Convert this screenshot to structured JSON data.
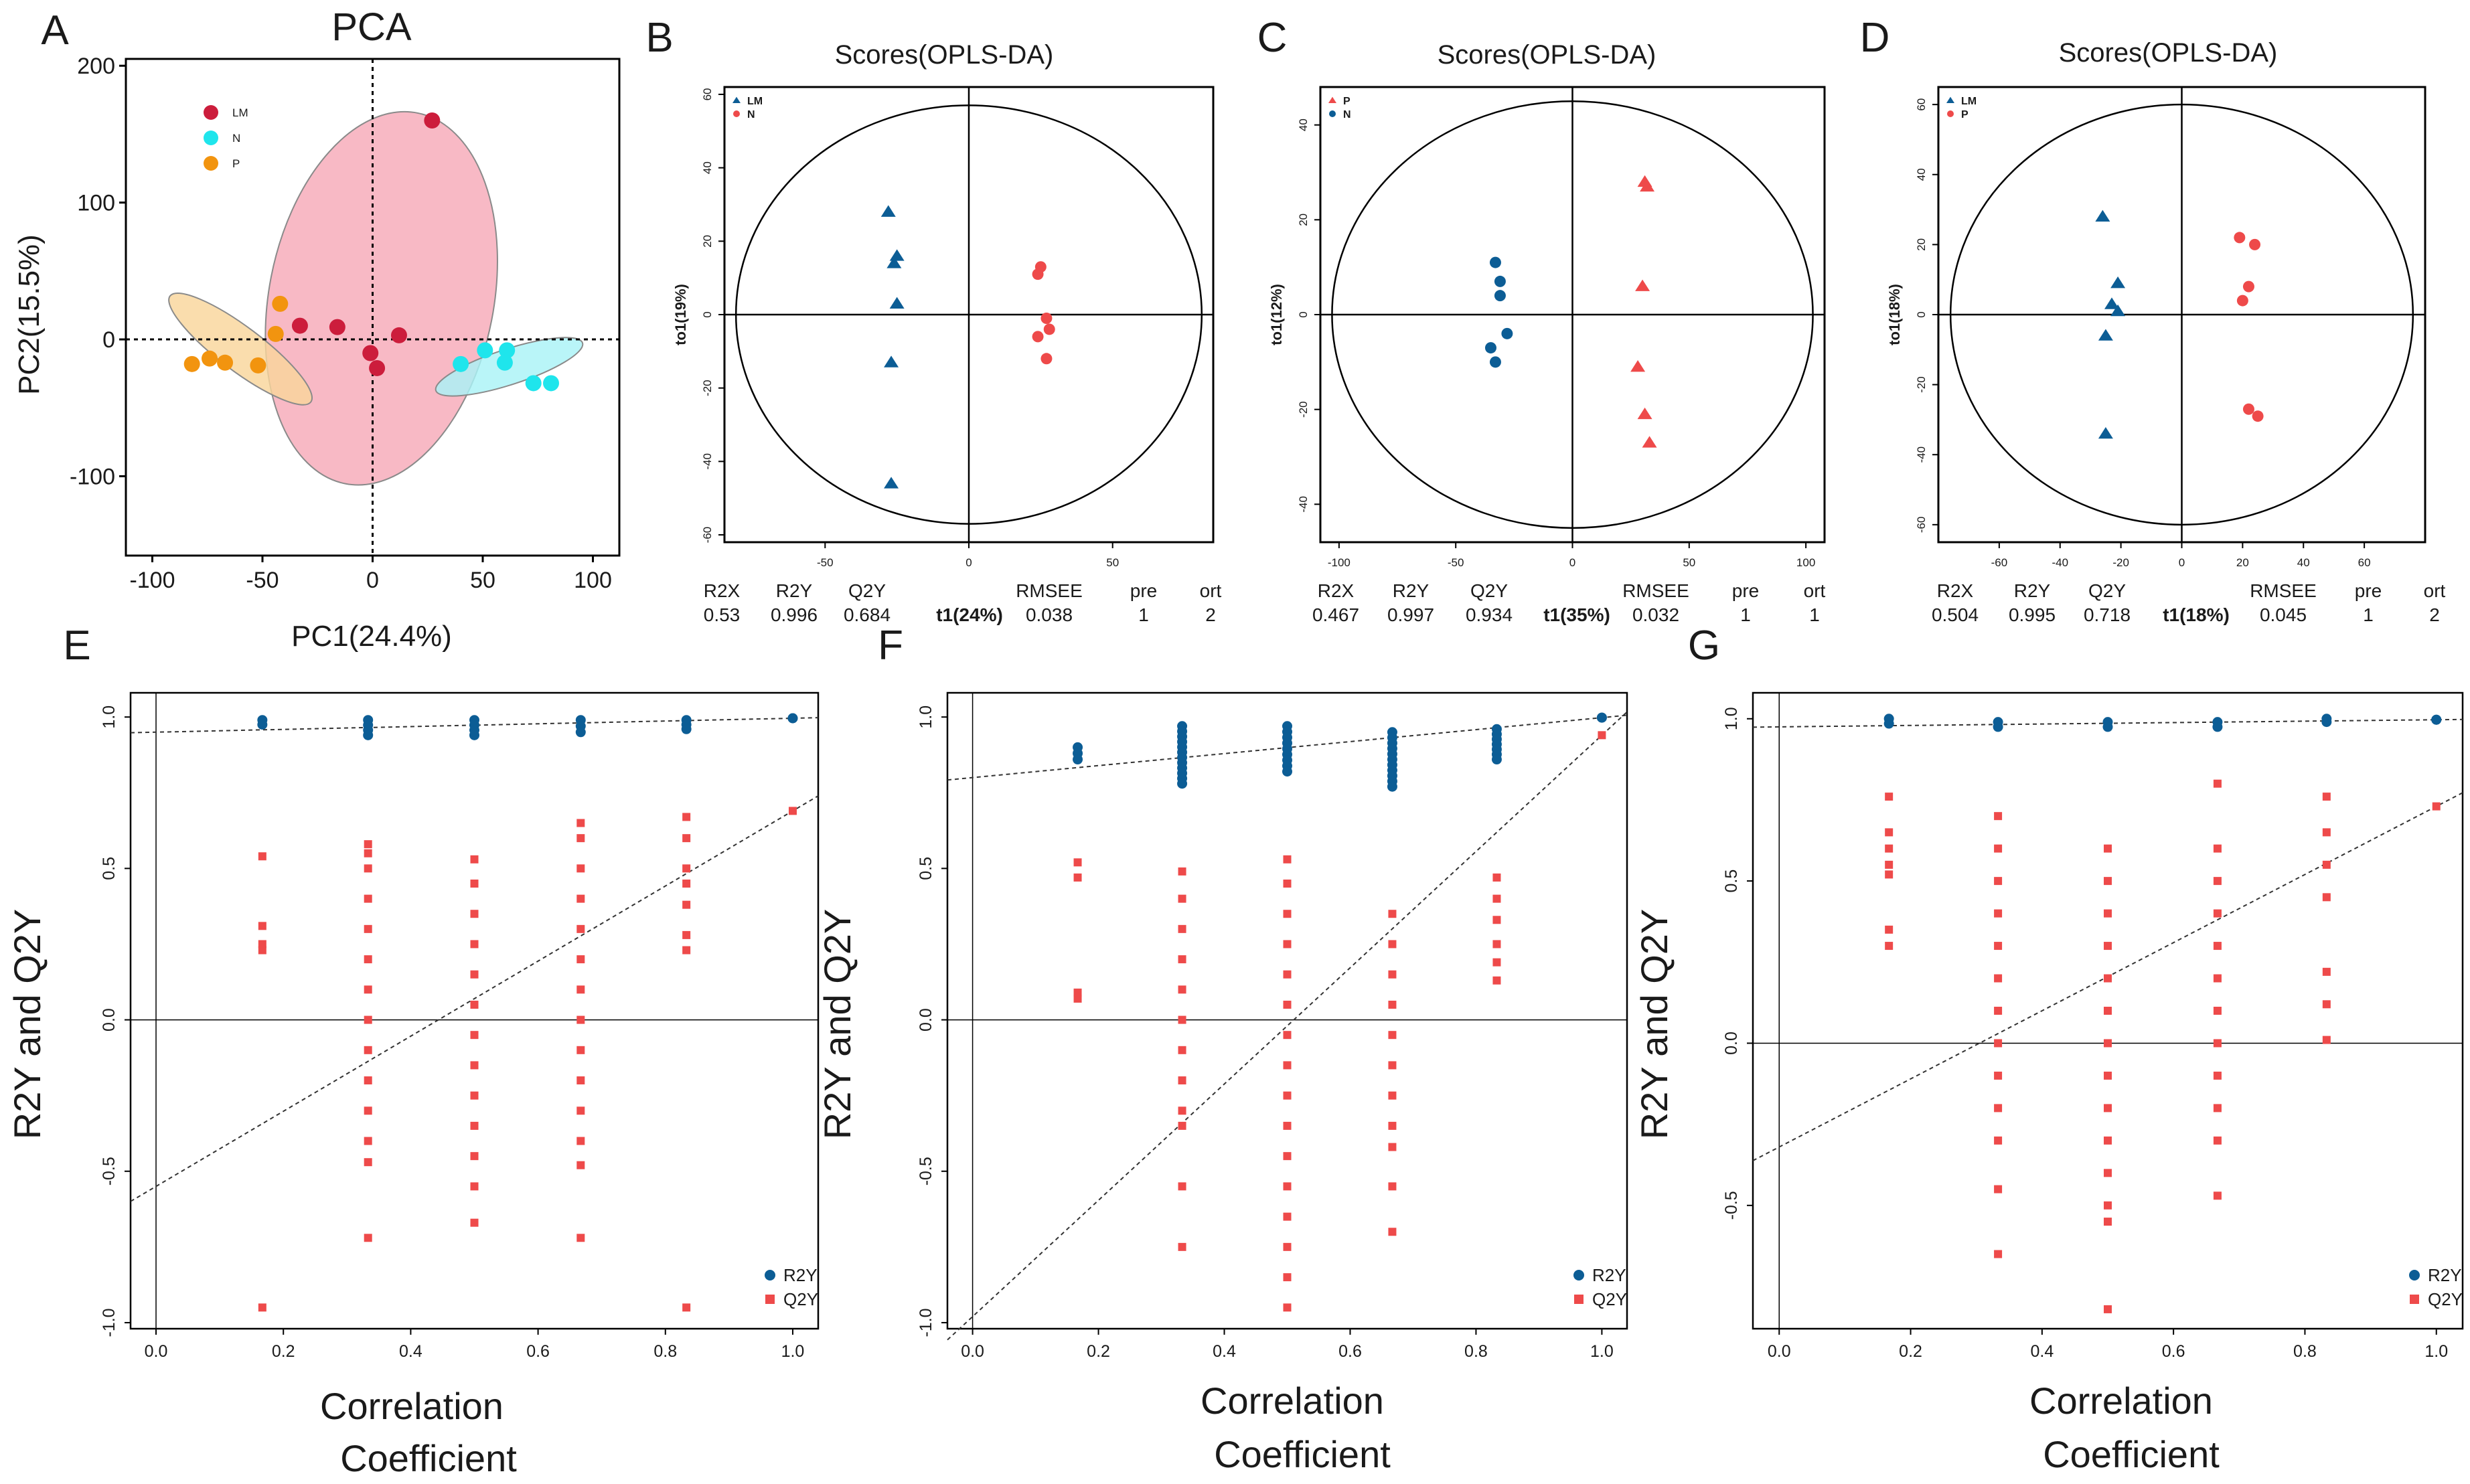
{
  "colors": {
    "lm": "#cc1d3c",
    "n": "#1fe5ec",
    "p": "#f2940f",
    "blue": "#0c5d95",
    "red": "#ee4a4a",
    "lm_ellipse": "#f7a9b8",
    "n_ellipse": "#aaf3f6",
    "p_ellipse": "#f9d59b"
  },
  "chart_data": [
    {
      "panel": "A",
      "type": "scatter",
      "title": "PCA",
      "xlabel": "PC1(24.4%)",
      "ylabel": "PC2(15.5%)",
      "xlim": [
        -112,
        112
      ],
      "ylim": [
        -158,
        205
      ],
      "xticks": [
        "-100",
        "-50",
        "0",
        "50",
        "100"
      ],
      "xtick_values": [
        -100,
        -50,
        0,
        50,
        100
      ],
      "yticks": [
        "200",
        "100",
        "0",
        "-100"
      ],
      "ytick_values": [
        200,
        100,
        0,
        -100
      ],
      "legend": [
        "LM",
        "N",
        "P"
      ],
      "series": [
        {
          "name": "LM",
          "color_key": "lm",
          "points": [
            [
              27,
              160
            ],
            [
              -33,
              10
            ],
            [
              -16,
              9
            ],
            [
              12,
              3
            ],
            [
              -1,
              -10
            ],
            [
              2,
              -21
            ]
          ],
          "ellipse": {
            "cx": 4,
            "cy": 30,
            "rx": 51,
            "ry": 138,
            "angle_deg": 11
          }
        },
        {
          "name": "N",
          "color_key": "n",
          "points": [
            [
              40,
              -18
            ],
            [
              51,
              -8
            ],
            [
              61,
              -8
            ],
            [
              60,
              -17
            ],
            [
              73,
              -32
            ],
            [
              81,
              -32
            ]
          ],
          "ellipse": {
            "cx": 62,
            "cy": -20,
            "rx": 35,
            "ry": 13,
            "angle_deg": -18
          }
        },
        {
          "name": "P",
          "color_key": "p",
          "points": [
            [
              -82,
              -18
            ],
            [
              -74,
              -14
            ],
            [
              -67,
              -17
            ],
            [
              -52,
              -19
            ],
            [
              -44,
              4
            ],
            [
              -42,
              26
            ]
          ],
          "ellipse": {
            "cx": -60,
            "cy": -7,
            "rx": 40,
            "ry": 16,
            "angle_deg": 37
          }
        }
      ]
    },
    {
      "panel": "B",
      "type": "scatter",
      "title": "Scores(OPLS-DA)",
      "ylabel": "to1(19%)",
      "xlim": [
        -85,
        85
      ],
      "ylim": [
        -62,
        62
      ],
      "xticks": [
        "-50",
        "0",
        "50"
      ],
      "xtick_values": [
        -50,
        0,
        50
      ],
      "yticks": [
        "60",
        "40",
        "20",
        "0",
        "-20",
        "-40",
        "-60"
      ],
      "ytick_values": [
        60,
        40,
        20,
        0,
        -20,
        -40,
        -60
      ],
      "ellipse": {
        "rx": 81,
        "ry": 57
      },
      "legend": [
        {
          "name": "LM",
          "shape": "triangle",
          "color_key": "blue"
        },
        {
          "name": "N",
          "shape": "circle",
          "color_key": "red"
        }
      ],
      "series": [
        {
          "name": "LM",
          "shape": "triangle",
          "color_key": "blue",
          "points": [
            [
              -28,
              28
            ],
            [
              -25,
              16
            ],
            [
              -26,
              14
            ],
            [
              -25,
              3
            ],
            [
              -27,
              -13
            ],
            [
              -27,
              -46
            ]
          ]
        },
        {
          "name": "N",
          "shape": "circle",
          "color_key": "red",
          "points": [
            [
              25,
              13
            ],
            [
              24,
              11
            ],
            [
              27,
              -1
            ],
            [
              28,
              -4
            ],
            [
              24,
              -6
            ],
            [
              27,
              -12
            ]
          ]
        }
      ],
      "stats": {
        "headers": [
          "R2X",
          "R2Y",
          "Q2Y",
          "t1(24%)",
          "RMSEE",
          "pre",
          "ort"
        ],
        "values": [
          "0.53",
          "0.996",
          "0.684",
          "",
          "0.038",
          "1",
          "2"
        ]
      }
    },
    {
      "panel": "C",
      "type": "scatter",
      "title": "Scores(OPLS-DA)",
      "ylabel": "to1(12%)",
      "xlim": [
        -108,
        108
      ],
      "ylim": [
        -48,
        48
      ],
      "xticks": [
        "-100",
        "-50",
        "0",
        "50",
        "100"
      ],
      "xtick_values": [
        -100,
        -50,
        0,
        50,
        100
      ],
      "yticks": [
        "40",
        "20",
        "0",
        "-20",
        "-40"
      ],
      "ytick_values": [
        40,
        20,
        0,
        -20,
        -40
      ],
      "ellipse": {
        "rx": 103,
        "ry": 45
      },
      "legend": [
        {
          "name": "P",
          "shape": "triangle",
          "color_key": "red"
        },
        {
          "name": "N",
          "shape": "circle",
          "color_key": "blue"
        }
      ],
      "series": [
        {
          "name": "P",
          "shape": "triangle",
          "color_key": "red",
          "points": [
            [
              31,
              28
            ],
            [
              32,
              27
            ],
            [
              30,
              6
            ],
            [
              28,
              -11
            ],
            [
              31,
              -21
            ],
            [
              33,
              -27
            ]
          ]
        },
        {
          "name": "N",
          "shape": "circle",
          "color_key": "blue",
          "points": [
            [
              -33,
              11
            ],
            [
              -31,
              7
            ],
            [
              -31,
              4
            ],
            [
              -28,
              -4
            ],
            [
              -35,
              -7
            ],
            [
              -33,
              -10
            ]
          ]
        }
      ],
      "stats": {
        "headers": [
          "R2X",
          "R2Y",
          "Q2Y",
          "t1(35%)",
          "RMSEE",
          "pre",
          "ort"
        ],
        "values": [
          "0.467",
          "0.997",
          "0.934",
          "",
          "0.032",
          "1",
          "1"
        ]
      }
    },
    {
      "panel": "D",
      "type": "scatter",
      "title": "Scores(OPLS-DA)",
      "ylabel": "to1(18%)",
      "xlim": [
        -80,
        80
      ],
      "ylim": [
        -65,
        65
      ],
      "xticks": [
        "-60",
        "-40",
        "-20",
        "0",
        "20",
        "40",
        "60"
      ],
      "xtick_values": [
        -60,
        -40,
        -20,
        0,
        20,
        40,
        60
      ],
      "yticks": [
        "60",
        "40",
        "20",
        "0",
        "-20",
        "-40",
        "-60"
      ],
      "ytick_values": [
        60,
        40,
        20,
        0,
        -20,
        -40,
        -60
      ],
      "ellipse": {
        "rx": 76,
        "ry": 60
      },
      "legend": [
        {
          "name": "LM",
          "shape": "triangle",
          "color_key": "blue"
        },
        {
          "name": "P",
          "shape": "circle",
          "color_key": "red"
        }
      ],
      "series": [
        {
          "name": "LM",
          "shape": "triangle",
          "color_key": "blue",
          "points": [
            [
              -26,
              28
            ],
            [
              -21,
              9
            ],
            [
              -23,
              3
            ],
            [
              -21,
              1
            ],
            [
              -25,
              -6
            ],
            [
              -25,
              -34
            ]
          ]
        },
        {
          "name": "P",
          "shape": "circle",
          "color_key": "red",
          "points": [
            [
              19,
              22
            ],
            [
              24,
              20
            ],
            [
              22,
              8
            ],
            [
              20,
              4
            ],
            [
              22,
              -27
            ],
            [
              25,
              -29
            ]
          ]
        }
      ],
      "stats": {
        "headers": [
          "R2X",
          "R2Y",
          "Q2Y",
          "t1(18%)",
          "RMSEE",
          "pre",
          "ort"
        ],
        "values": [
          "0.504",
          "0.995",
          "0.718",
          "",
          "0.045",
          "1",
          "2"
        ]
      }
    },
    {
      "panel": "E",
      "type": "scatter",
      "xlabel": [
        "Correlation",
        "Coefficient"
      ],
      "ylabel": "R2Y and Q2Y",
      "xlim": [
        -0.04,
        1.04
      ],
      "ylim": [
        -1.02,
        1.08
      ],
      "xticks": [
        "0.0",
        "0.2",
        "0.4",
        "0.6",
        "0.8",
        "1.0"
      ],
      "xtick_values": [
        0,
        0.2,
        0.4,
        0.6,
        0.8,
        1.0
      ],
      "yticks": [
        "1.0",
        "0.5",
        "0.0",
        "-0.5",
        "-1.0"
      ],
      "ytick_values": [
        1.0,
        0.5,
        0.0,
        -0.5,
        -1.0
      ],
      "legend": [
        {
          "name": "R2Y",
          "shape": "circle",
          "color_key": "blue"
        },
        {
          "name": "Q2Y",
          "shape": "square",
          "color_key": "red"
        }
      ],
      "r2y_intercept": 0.95,
      "q2y_intercept": -0.55,
      "r2y": [
        [
          0.167,
          0.975,
          0.99
        ],
        [
          0.333,
          0.94,
          0.99
        ],
        [
          0.5,
          0.94,
          0.99
        ],
        [
          0.667,
          0.95,
          0.99
        ],
        [
          0.833,
          0.96,
          0.99
        ],
        [
          1.0,
          0.996,
          0.996
        ]
      ],
      "q2y": [
        [
          0.167,
          [
            0.54,
            0.31,
            0.25,
            0.23,
            -0.95
          ]
        ],
        [
          0.333,
          [
            0.58,
            0.55,
            0.5,
            0.4,
            0.3,
            0.2,
            0.1,
            0.0,
            -0.1,
            -0.2,
            -0.3,
            -0.4,
            -0.47,
            -0.72
          ]
        ],
        [
          0.5,
          [
            0.53,
            0.45,
            0.35,
            0.25,
            0.15,
            0.05,
            -0.05,
            -0.15,
            -0.25,
            -0.35,
            -0.45,
            -0.55,
            -0.67
          ]
        ],
        [
          0.667,
          [
            0.65,
            0.6,
            0.5,
            0.4,
            0.3,
            0.2,
            0.1,
            0.0,
            -0.1,
            -0.2,
            -0.3,
            -0.4,
            -0.48,
            -0.72
          ]
        ],
        [
          0.833,
          [
            0.67,
            0.6,
            0.5,
            0.45,
            0.38,
            0.28,
            0.23,
            -0.95
          ]
        ],
        [
          1.0,
          [
            0.69
          ]
        ]
      ]
    },
    {
      "panel": "F",
      "type": "scatter",
      "xlabel": [
        "Correlation",
        "Coefficient"
      ],
      "ylabel": "R2Y and Q2Y",
      "xlim": [
        -0.04,
        1.04
      ],
      "ylim": [
        -1.02,
        1.08
      ],
      "xticks": [
        "0.0",
        "0.2",
        "0.4",
        "0.6",
        "0.8",
        "1.0"
      ],
      "xtick_values": [
        0,
        0.2,
        0.4,
        0.6,
        0.8,
        1.0
      ],
      "yticks": [
        "1.0",
        "0.5",
        "0.0",
        "-0.5",
        "-1.0"
      ],
      "ytick_values": [
        1.0,
        0.5,
        0.0,
        -0.5,
        -1.0
      ],
      "legend": [
        {
          "name": "R2Y",
          "shape": "circle",
          "color_key": "blue"
        },
        {
          "name": "Q2Y",
          "shape": "square",
          "color_key": "red"
        }
      ],
      "r2y_intercept": 0.8,
      "q2y_intercept": -0.98,
      "r2y": [
        [
          0.167,
          0.86,
          0.9
        ],
        [
          0.333,
          0.78,
          0.97
        ],
        [
          0.5,
          0.82,
          0.97
        ],
        [
          0.667,
          0.77,
          0.95
        ],
        [
          0.833,
          0.86,
          0.96
        ],
        [
          1.0,
          0.998,
          0.998
        ]
      ],
      "q2y": [
        [
          0.167,
          [
            0.52,
            0.47,
            0.09,
            0.07
          ]
        ],
        [
          0.333,
          [
            0.49,
            0.4,
            0.3,
            0.2,
            0.1,
            0.0,
            -0.1,
            -0.2,
            -0.3,
            -0.35,
            -0.55,
            -0.75
          ]
        ],
        [
          0.5,
          [
            0.53,
            0.45,
            0.35,
            0.25,
            0.15,
            0.05,
            -0.05,
            -0.15,
            -0.25,
            -0.35,
            -0.45,
            -0.55,
            -0.65,
            -0.75,
            -0.85,
            -0.95
          ]
        ],
        [
          0.667,
          [
            0.35,
            0.25,
            0.15,
            0.05,
            -0.05,
            -0.15,
            -0.25,
            -0.35,
            -0.42,
            -0.55,
            -0.7
          ]
        ],
        [
          0.833,
          [
            0.47,
            0.4,
            0.33,
            0.25,
            0.19,
            0.13
          ]
        ],
        [
          1.0,
          [
            0.94
          ]
        ]
      ]
    },
    {
      "panel": "G",
      "type": "scatter",
      "xlabel": [
        "Correlation",
        "Coefficient"
      ],
      "ylabel": "R2Y and Q2Y",
      "xlim": [
        -0.04,
        1.04
      ],
      "ylim": [
        -0.88,
        1.08
      ],
      "xticks": [
        "0.0",
        "0.2",
        "0.4",
        "0.6",
        "0.8",
        "1.0"
      ],
      "xtick_values": [
        0,
        0.2,
        0.4,
        0.6,
        0.8,
        1.0
      ],
      "yticks": [
        "1.0",
        "0.5",
        "0.0",
        "-0.5"
      ],
      "ytick_values": [
        1.0,
        0.5,
        0.0,
        -0.5
      ],
      "legend": [
        {
          "name": "R2Y",
          "shape": "circle",
          "color_key": "blue"
        },
        {
          "name": "Q2Y",
          "shape": "square",
          "color_key": "red"
        }
      ],
      "r2y_intercept": 0.975,
      "q2y_intercept": -0.32,
      "r2y": [
        [
          0.167,
          0.985,
          1.0
        ],
        [
          0.333,
          0.975,
          0.99
        ],
        [
          0.5,
          0.975,
          0.99
        ],
        [
          0.667,
          0.975,
          0.99
        ],
        [
          0.833,
          0.99,
          1.0
        ],
        [
          1.0,
          0.997,
          0.997
        ]
      ],
      "q2y": [
        [
          0.167,
          [
            0.76,
            0.65,
            0.6,
            0.55,
            0.52,
            0.35,
            0.3
          ]
        ],
        [
          0.333,
          [
            0.7,
            0.6,
            0.5,
            0.4,
            0.3,
            0.2,
            0.1,
            0.0,
            -0.1,
            -0.2,
            -0.3,
            -0.45,
            -0.65
          ]
        ],
        [
          0.5,
          [
            0.6,
            0.5,
            0.4,
            0.3,
            0.2,
            0.1,
            0.0,
            -0.1,
            -0.2,
            -0.3,
            -0.4,
            -0.5,
            -0.55,
            -0.82
          ]
        ],
        [
          0.667,
          [
            0.8,
            0.6,
            0.5,
            0.4,
            0.3,
            0.2,
            0.1,
            0.0,
            -0.1,
            -0.2,
            -0.3,
            -0.47
          ]
        ],
        [
          0.833,
          [
            0.76,
            0.65,
            0.55,
            0.45,
            0.22,
            0.12,
            0.01
          ]
        ],
        [
          1.0,
          [
            0.73
          ]
        ]
      ]
    }
  ]
}
